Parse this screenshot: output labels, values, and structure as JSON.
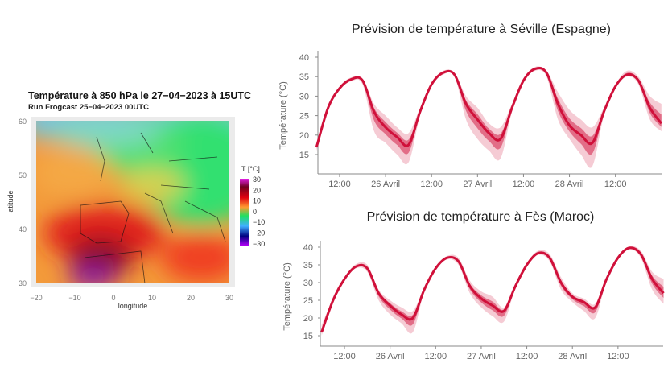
{
  "chart_data": [
    {
      "type": "heatmap",
      "title": "Température à 850 hPa le 27−04−2023 à 15UTC",
      "subtitle": "Run Frogcast 25−04−2023  00UTC",
      "xlabel": "longitude",
      "ylabel": "latitude",
      "xlim": [
        -20,
        30
      ],
      "ylim": [
        30,
        60
      ],
      "xticks": [
        "−20",
        "−10",
        "0",
        "10",
        "20",
        "30"
      ],
      "yticks": [
        "30",
        "40",
        "50",
        "60"
      ],
      "legend": {
        "title": "T [°C]",
        "placement": "right",
        "ticks": [
          "30",
          "20",
          "10",
          "0",
          "−10",
          "−20",
          "−30"
        ],
        "colors": [
          "#e020e0",
          "#700020",
          "#e00010",
          "#ff9a30",
          "#20e060",
          "#40b0ff",
          "#000080",
          "#c000ff"
        ]
      }
    },
    {
      "type": "area",
      "title": "Prévision de température à Séville (Espagne)",
      "ylabel": "Température (°C)",
      "ylim": [
        10,
        40
      ],
      "yticks": [
        "40",
        "35",
        "30",
        "25",
        "20",
        "15"
      ],
      "xticks": [
        "12:00",
        "26 Avril",
        "12:00",
        "27 Avril",
        "12:00",
        "28 Avril",
        "12:00"
      ],
      "xtick_times": [
        "2023-04-25T12:00",
        "2023-04-26T00:00",
        "2023-04-26T12:00",
        "2023-04-27T00:00",
        "2023-04-27T12:00",
        "2023-04-28T00:00",
        "2023-04-28T12:00"
      ],
      "x_start": "2023-04-25T06:00",
      "x_step_hours": 3,
      "color": "#d0103a",
      "median": [
        17,
        27,
        32,
        34.3,
        34,
        26,
        22,
        19.5,
        17.5,
        26,
        33,
        36,
        35.5,
        28,
        24,
        20.5,
        19,
        27,
        34,
        37,
        36,
        28,
        22.5,
        20,
        18,
        26,
        32.5,
        35.5,
        34,
        27,
        23
      ],
      "min": [
        16,
        26.5,
        31.5,
        33.8,
        33,
        21,
        18,
        15,
        13,
        25,
        32.5,
        35.5,
        35,
        24,
        19,
        16,
        14,
        26,
        33.5,
        36.5,
        35,
        24,
        19,
        15,
        12,
        25,
        32,
        35,
        33,
        24,
        21
      ],
      "max": [
        18,
        27.5,
        32.5,
        34.8,
        34.5,
        28,
        25,
        22,
        20.5,
        27,
        33.5,
        36.5,
        36,
        30,
        27,
        23,
        22,
        28,
        34.5,
        37.5,
        36.5,
        31,
        26.5,
        24,
        22,
        27,
        33,
        36.5,
        35,
        30,
        28
      ]
    },
    {
      "type": "area",
      "title": "Prévision de température à Fès (Maroc)",
      "ylabel": "Température (°C)",
      "ylim": [
        12,
        40
      ],
      "yticks": [
        "40",
        "35",
        "30",
        "25",
        "20",
        "15"
      ],
      "xticks": [
        "12:00",
        "26 Avril",
        "12:00",
        "27 Avril",
        "12:00",
        "28 Avril",
        "12:00"
      ],
      "xtick_times": [
        "2023-04-25T12:00",
        "2023-04-26T00:00",
        "2023-04-26T12:00",
        "2023-04-27T00:00",
        "2023-04-27T12:00",
        "2023-04-28T00:00",
        "2023-04-28T12:00"
      ],
      "x_start": "2023-04-25T06:00",
      "x_step_hours": 3,
      "color": "#d0103a",
      "median": [
        16,
        25,
        31,
        34.5,
        34,
        27,
        23.5,
        21,
        20,
        28,
        34,
        37,
        36,
        29,
        25.5,
        23.5,
        22,
        29,
        35,
        38.3,
        37,
        30,
        26,
        24.5,
        23,
        31,
        37,
        39.8,
        38,
        31,
        27
      ],
      "min": [
        15,
        24.5,
        30.5,
        34,
        33,
        25,
        21,
        18.5,
        16,
        27.5,
        33.5,
        36.5,
        35,
        27,
        23,
        20.5,
        19,
        28.5,
        34.5,
        37.8,
        36,
        28,
        24.5,
        22,
        20,
        30.5,
        36.5,
        39.3,
        37,
        28,
        24
      ],
      "max": [
        18,
        25.5,
        31.5,
        35.2,
        35,
        28,
        25,
        23,
        22,
        28.5,
        34.5,
        37.5,
        37,
        30.5,
        27.5,
        26,
        23,
        29.5,
        35.5,
        39,
        38,
        31.5,
        27,
        25.5,
        24,
        31.5,
        37.5,
        40.2,
        39,
        33,
        31
      ]
    }
  ]
}
